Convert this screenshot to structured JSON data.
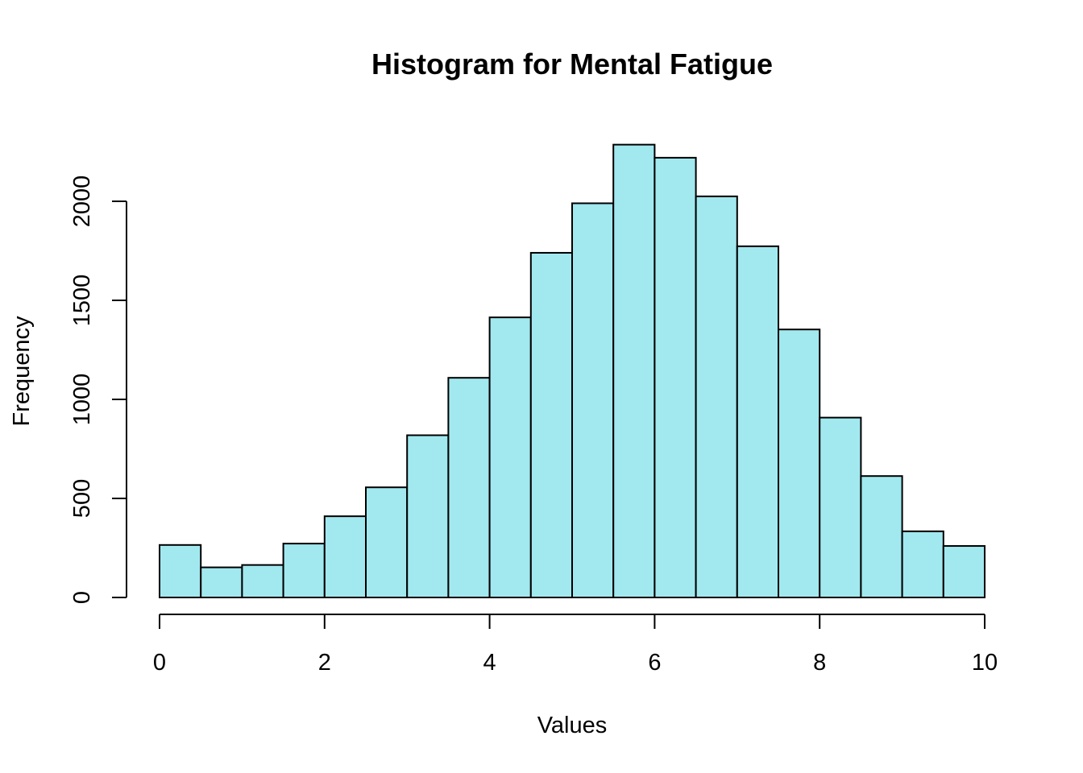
{
  "chart_data": {
    "type": "bar",
    "subtype": "histogram",
    "title": "Histogram for Mental Fatigue",
    "xlabel": "Values",
    "ylabel": "Frequency",
    "bar_color": "#A2E8EF",
    "edge_color": "#000000",
    "xlim": [
      0,
      10
    ],
    "ylim": [
      0,
      2300
    ],
    "x_ticks": [
      0,
      2,
      4,
      6,
      8,
      10
    ],
    "y_ticks": [
      0,
      500,
      1000,
      1500,
      2000
    ],
    "grid": false,
    "bins": [
      {
        "x0": 0.0,
        "x1": 0.5,
        "count": 265
      },
      {
        "x0": 0.5,
        "x1": 1.0,
        "count": 152
      },
      {
        "x0": 1.0,
        "x1": 1.5,
        "count": 164
      },
      {
        "x0": 1.5,
        "x1": 2.0,
        "count": 272
      },
      {
        "x0": 2.0,
        "x1": 2.5,
        "count": 410
      },
      {
        "x0": 2.5,
        "x1": 3.0,
        "count": 556
      },
      {
        "x0": 3.0,
        "x1": 3.5,
        "count": 819
      },
      {
        "x0": 3.5,
        "x1": 4.0,
        "count": 1109
      },
      {
        "x0": 4.0,
        "x1": 4.5,
        "count": 1414
      },
      {
        "x0": 4.5,
        "x1": 5.0,
        "count": 1740
      },
      {
        "x0": 5.0,
        "x1": 5.5,
        "count": 1990
      },
      {
        "x0": 5.5,
        "x1": 6.0,
        "count": 2286
      },
      {
        "x0": 6.0,
        "x1": 6.5,
        "count": 2220
      },
      {
        "x0": 6.5,
        "x1": 7.0,
        "count": 2025
      },
      {
        "x0": 7.0,
        "x1": 7.5,
        "count": 1773
      },
      {
        "x0": 7.5,
        "x1": 8.0,
        "count": 1353
      },
      {
        "x0": 8.0,
        "x1": 8.5,
        "count": 908
      },
      {
        "x0": 8.5,
        "x1": 9.0,
        "count": 613
      },
      {
        "x0": 9.0,
        "x1": 9.5,
        "count": 334
      },
      {
        "x0": 9.5,
        "x1": 10.0,
        "count": 260
      }
    ]
  }
}
